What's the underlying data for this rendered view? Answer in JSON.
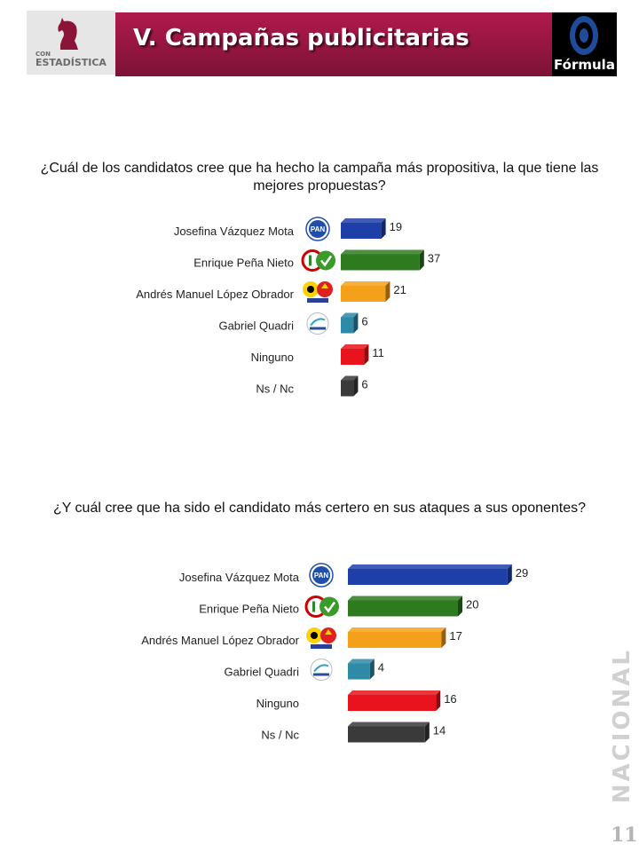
{
  "header": {
    "title": "V. Campañas publicitarias",
    "logo_small": "CON",
    "logo_big": "ESTADÍSTICA",
    "formula_label": "Fórmula",
    "accent": "#9b1744"
  },
  "side_label": "NACIONAL",
  "page_number": "11",
  "chart_data": [
    {
      "type": "bar",
      "title": "¿Cuál de los candidatos cree que ha hecho la campaña más propositiva, la que tiene las mejores propuestas?",
      "categories": [
        "Josefina Vázquez Mota",
        "Enrique Peña Nieto",
        "Andrés Manuel López Obrador",
        "Gabriel Quadri",
        "Ninguno",
        "Ns / Nc"
      ],
      "values": [
        19,
        37,
        21,
        6,
        11,
        6
      ],
      "colors": [
        "#1f3fa8",
        "#2e7a1f",
        "#f5a01a",
        "#2f8aa8",
        "#e8131c",
        "#3a3a3a"
      ],
      "party_icons": [
        "pan-icon",
        "pri-pvem-icon",
        "prd-pt-mc-icon",
        "panal-icon",
        "",
        ""
      ]
    },
    {
      "type": "bar",
      "title": "¿Y cuál cree que ha sido el candidato más certero en sus ataques a sus oponentes?",
      "categories": [
        "Josefina Vázquez Mota",
        "Enrique Peña Nieto",
        "Andrés Manuel López Obrador",
        "Gabriel Quadri",
        "Ninguno",
        "Ns / Nc"
      ],
      "values": [
        29,
        20,
        17,
        4,
        16,
        14
      ],
      "colors": [
        "#1f3fa8",
        "#2e7a1f",
        "#f5a01a",
        "#2f8aa8",
        "#e8131c",
        "#3a3a3a"
      ],
      "party_icons": [
        "pan-icon",
        "pri-pvem-icon",
        "prd-pt-mc-icon",
        "panal-icon",
        "",
        ""
      ]
    }
  ]
}
